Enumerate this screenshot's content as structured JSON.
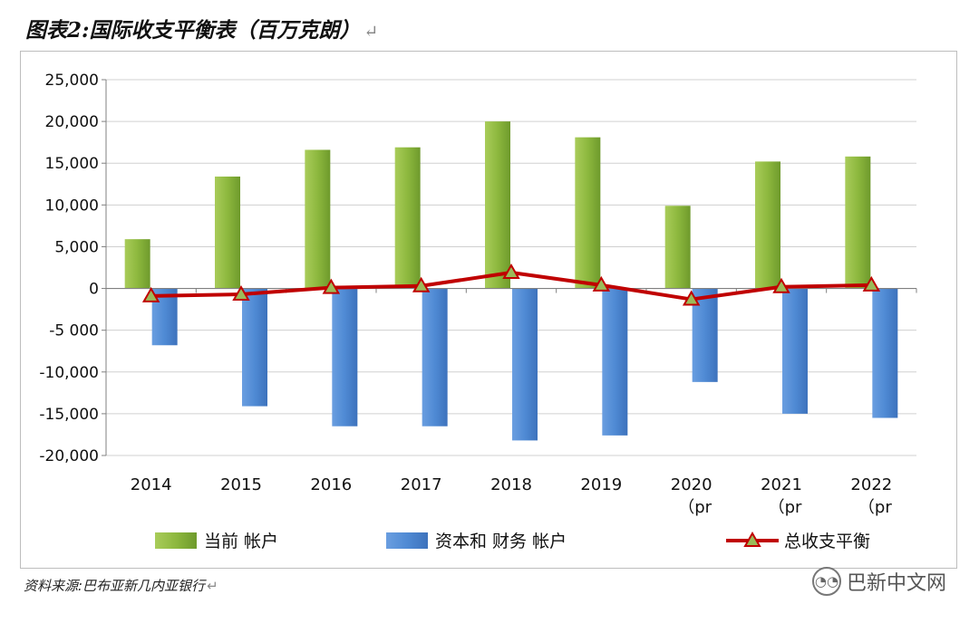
{
  "title": "图表2:国际收支平衡表（百万克朗）",
  "title_return_mark": "↵",
  "source": "资料来源:巴布亚新几内亚银行",
  "source_return_mark": "↵",
  "watermark": {
    "text": "巴新中文网",
    "icon": "wechat-icon"
  },
  "colors": {
    "current_account": "#8DB83E",
    "capital_financial": "#4F8AD4",
    "total_balance": "#C00000",
    "marker_fill": "#9BBB59",
    "gridline": "#D0D0D0",
    "axis": "#808080"
  },
  "chart_data": {
    "type": "bar",
    "categories": [
      "2014",
      "2015",
      "2016",
      "2017",
      "2018",
      "2019",
      "2020",
      "2021",
      "2022"
    ],
    "category_labels": [
      {
        "line1": "2014",
        "line2": ""
      },
      {
        "line1": "2015",
        "line2": ""
      },
      {
        "line1": "2016",
        "line2": ""
      },
      {
        "line1": "2017",
        "line2": ""
      },
      {
        "line1": "2018",
        "line2": ""
      },
      {
        "line1": "2019",
        "line2": ""
      },
      {
        "line1": "2020",
        "line2": "（pr"
      },
      {
        "line1": "2021",
        "line2": "（pr"
      },
      {
        "line1": "2022",
        "line2": "（pr"
      }
    ],
    "series": [
      {
        "name": "当前 帐户",
        "type": "bar",
        "values": [
          5900,
          13400,
          16600,
          16900,
          20000,
          18100,
          9900,
          15200,
          15800
        ]
      },
      {
        "name": "资本和 财务 帐户",
        "type": "bar",
        "values": [
          -6800,
          -14100,
          -16500,
          -16500,
          -18200,
          -17600,
          -11200,
          -15000,
          -15500
        ]
      },
      {
        "name": "总收支平衡",
        "type": "line",
        "marker": "triangle",
        "values": [
          -900,
          -700,
          100,
          300,
          1900,
          400,
          -1300,
          200,
          400
        ]
      }
    ],
    "y_ticks": [
      "25,000",
      "20,000",
      "15,000",
      "10,000",
      "5,000",
      "0",
      "-5 000",
      "-10,000",
      "-15,000",
      "-20,000"
    ],
    "y_tick_values": [
      25000,
      20000,
      15000,
      10000,
      5000,
      0,
      -5000,
      -10000,
      -15000,
      -20000
    ],
    "ylim": [
      -20000,
      25000
    ],
    "grid": true,
    "legend_position": "bottom"
  }
}
